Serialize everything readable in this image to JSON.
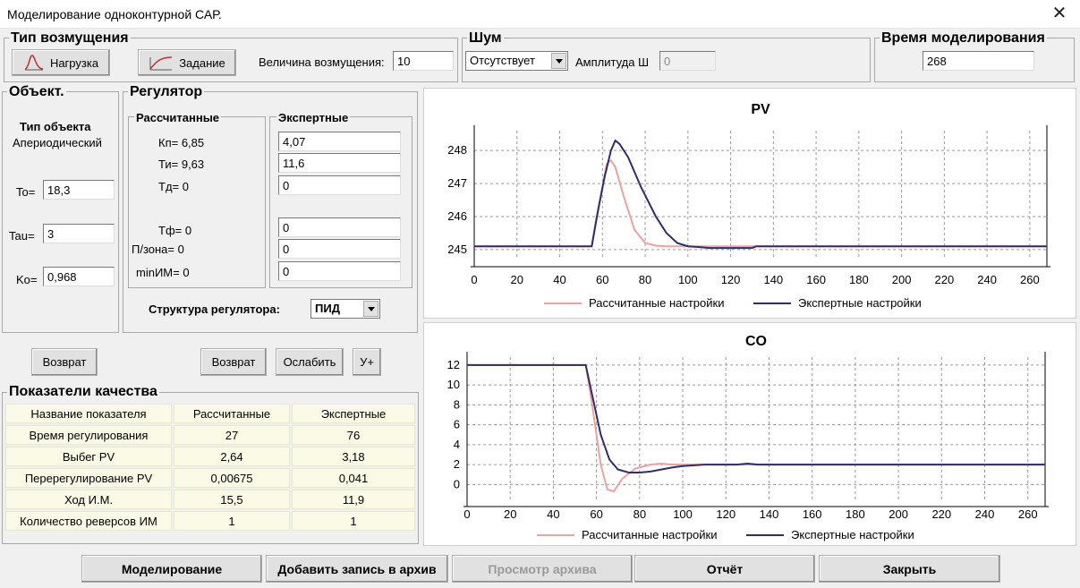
{
  "window": {
    "title": "Моделирование одноконтурной САР."
  },
  "disturbance": {
    "legend": "Тип возмущения",
    "load_label": "Нагрузка",
    "setpoint_label": "Задание",
    "magnitude_label": "Величина возмущения:",
    "magnitude_value": "10"
  },
  "noise": {
    "legend": "Шум",
    "selected": "Отсутствует",
    "amplitude_label": "Амплитуда Ш",
    "amplitude_value": "0"
  },
  "simtime": {
    "legend": "Время моделирования",
    "value": "268"
  },
  "object": {
    "legend": "Объект.",
    "type_heading": "Тип объекта",
    "type_value": "Апериодический",
    "to_label": "To=",
    "to_value": "18,3",
    "tau_label": "Tau=",
    "tau_value": "3",
    "ko_label": "Ko=",
    "ko_value": "0,968"
  },
  "regulator": {
    "legend": "Регулятор",
    "calc_heading": "Рассчитанные",
    "expert_heading": "Экспертные",
    "kp": "Кп= 6,85",
    "ti": "Ти= 9,63",
    "td": "Тд= 0",
    "tf": "Тф= 0",
    "pzone": "П/зона= 0",
    "minim": "minИМ= 0",
    "expert_values": [
      "4,07",
      "11,6",
      "0",
      "0",
      "0",
      "0"
    ],
    "structure_label": "Структура регулятора:",
    "structure_value": "ПИД"
  },
  "buttons": {
    "return_obj": "Возврат",
    "return_reg": "Возврат",
    "weaken": "Ослабить",
    "strengthen": "У+",
    "simulate": "Моделирование",
    "archive_add": "Добавить запись в архив",
    "archive_view": "Просмотр архива",
    "report": "Отчёт",
    "close": "Закрыть"
  },
  "quality": {
    "legend": "Показатели качества",
    "headers": [
      "Название показателя",
      "Рассчитанные",
      "Экспертные"
    ],
    "rows": [
      [
        "Время регулирования",
        "27",
        "76"
      ],
      [
        "Выбег PV",
        "2,64",
        "3,18"
      ],
      [
        "Перерегулирование PV",
        "0,00675",
        "0,041"
      ],
      [
        "Ход И.М.",
        "15,5",
        "11,9"
      ],
      [
        "Количество реверсов ИМ",
        "1",
        "1"
      ]
    ]
  },
  "colors": {
    "calc": "#f0a0a0",
    "expert": "#2e2e6e"
  },
  "chart_data": [
    {
      "type": "line",
      "title": "PV",
      "xlim": [
        0,
        268
      ],
      "ylim": [
        244.7,
        248.6
      ],
      "xticks": [
        0,
        20,
        40,
        60,
        80,
        100,
        120,
        140,
        160,
        180,
        200,
        220,
        240,
        260
      ],
      "yticks": [
        245,
        246,
        247,
        248
      ],
      "grid": true,
      "legend": "bottom",
      "series": [
        {
          "name": "Рассчитанные настройки",
          "color": "#f0a0a0",
          "x": [
            0,
            55,
            57,
            60,
            62,
            64,
            66,
            70,
            75,
            80,
            85,
            90,
            100,
            268
          ],
          "y": [
            245.1,
            245.1,
            245.9,
            246.9,
            247.6,
            247.7,
            247.5,
            246.6,
            245.6,
            245.2,
            245.12,
            245.1,
            245.1,
            245.1
          ]
        },
        {
          "name": "Экспертные настройки",
          "color": "#2e2e6e",
          "x": [
            0,
            55,
            58,
            61,
            64,
            66,
            68,
            72,
            78,
            85,
            90,
            95,
            100,
            105,
            110,
            120,
            130,
            132,
            268
          ],
          "y": [
            245.1,
            245.1,
            246.2,
            247.2,
            248.0,
            248.3,
            248.2,
            247.8,
            246.9,
            246.0,
            245.5,
            245.2,
            245.1,
            245.08,
            245.05,
            245.05,
            245.05,
            245.1,
            245.1
          ]
        }
      ]
    },
    {
      "type": "line",
      "title": "CO",
      "xlim": [
        0,
        268
      ],
      "ylim": [
        -1.5,
        12.8
      ],
      "xticks": [
        0,
        20,
        40,
        60,
        80,
        100,
        120,
        140,
        160,
        180,
        200,
        220,
        240,
        260
      ],
      "yticks": [
        0,
        2,
        4,
        6,
        8,
        10,
        12
      ],
      "grid": true,
      "legend": "bottom",
      "series": [
        {
          "name": "Рассчитанные настройки",
          "color": "#f0a0a0",
          "x": [
            0,
            55,
            58,
            62,
            65,
            68,
            72,
            78,
            85,
            90,
            95,
            100,
            268
          ],
          "y": [
            12,
            12,
            8,
            2,
            -0.5,
            -0.7,
            0.6,
            1.6,
            2.0,
            2.1,
            2.0,
            2.0,
            2.0
          ]
        },
        {
          "name": "Экспертные настройки",
          "color": "#2e2e6e",
          "x": [
            0,
            55,
            58,
            62,
            66,
            70,
            75,
            80,
            85,
            90,
            95,
            100,
            110,
            125,
            130,
            135,
            268
          ],
          "y": [
            12,
            12,
            9,
            5,
            2.5,
            1.5,
            1.2,
            1.2,
            1.3,
            1.5,
            1.7,
            1.85,
            2.0,
            2.0,
            2.1,
            2.0,
            2.0
          ]
        }
      ]
    }
  ]
}
